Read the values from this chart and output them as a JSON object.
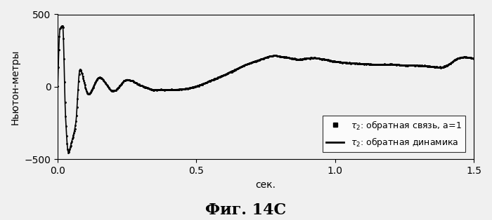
{
  "title": "Фиг. 14C",
  "xlabel": "сек.",
  "ylabel": "Ньютон-метры",
  "xlim": [
    0,
    1.5
  ],
  "ylim": [
    -500,
    500
  ],
  "yticks": [
    -500,
    0,
    500
  ],
  "xticks": [
    0,
    0.5,
    1.0,
    1.5
  ],
  "line_color": "#000000",
  "background_color": "#f0f0f0",
  "title_fontsize": 16,
  "axis_fontsize": 10,
  "legend_fontsize": 9
}
